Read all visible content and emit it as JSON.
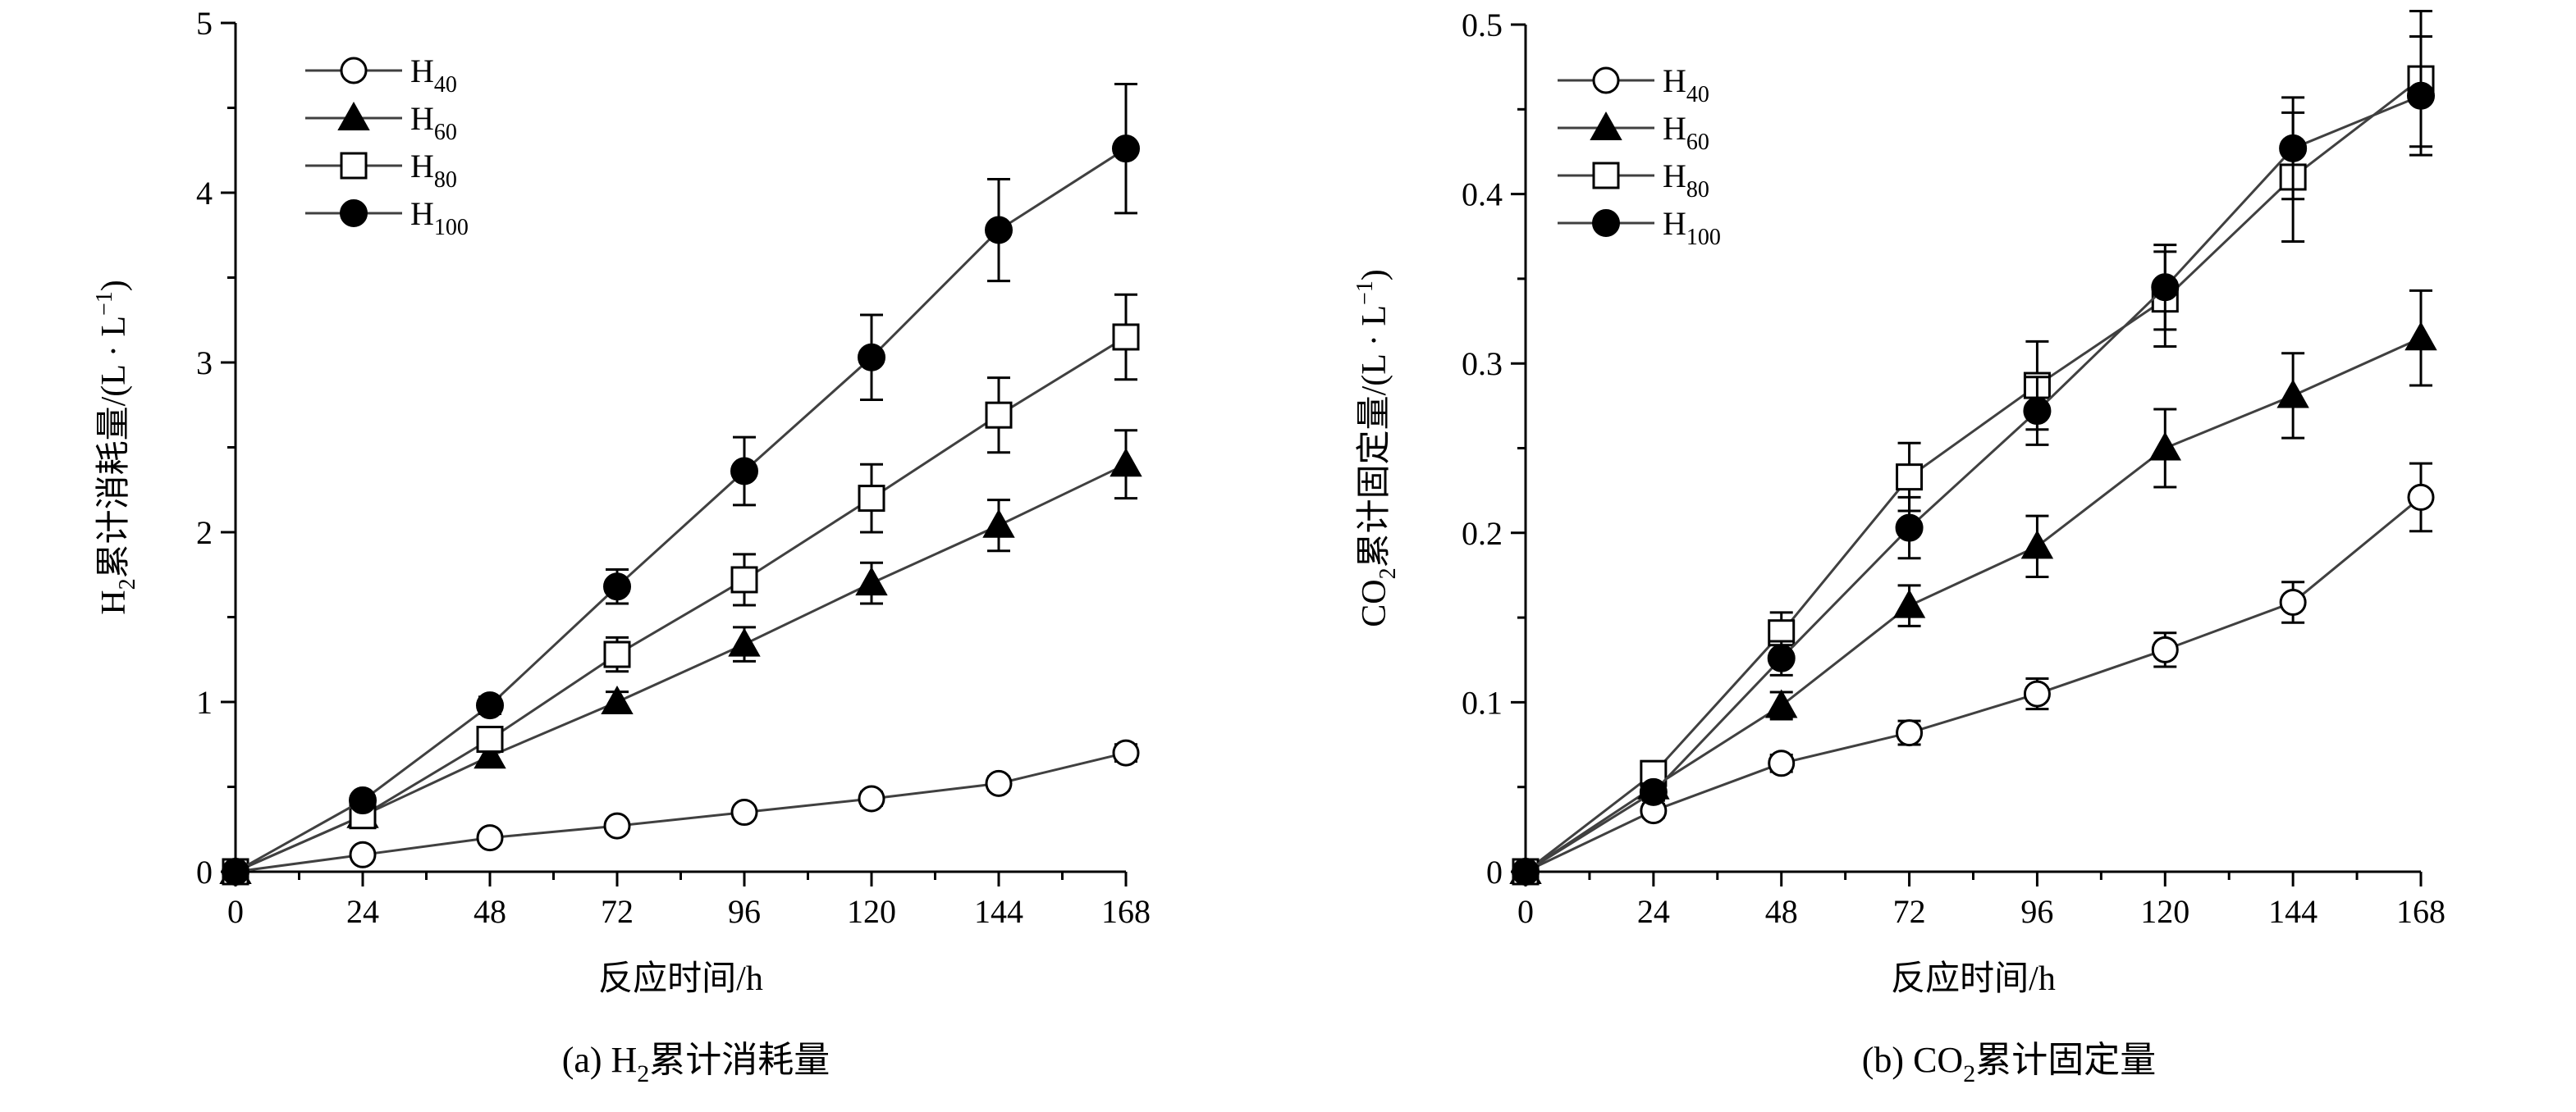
{
  "chart_data": [
    {
      "type": "line",
      "title": "",
      "caption_prefix": "(a) H",
      "caption_sub": "2",
      "caption_suffix": "累计消耗量",
      "xlabel": "反应时间/h",
      "ylabel_prefix": "H",
      "ylabel_sub": "2",
      "ylabel_main": "累计消耗量/(L · L",
      "ylabel_sup": "−1",
      "ylabel_close": ")",
      "xlim": [
        0,
        168
      ],
      "ylim": [
        0,
        5
      ],
      "x_ticks": [
        0,
        24,
        48,
        72,
        96,
        120,
        144,
        168
      ],
      "y_ticks": [
        0,
        1,
        2,
        3,
        4,
        5
      ],
      "y_tick_labels": [
        "0",
        "1",
        "2",
        "3",
        "4",
        "5"
      ],
      "grid": false,
      "legend_position": "top-left",
      "x": [
        0,
        24,
        48,
        72,
        96,
        120,
        144,
        168
      ],
      "series": [
        {
          "name": "H",
          "name_sub": "40",
          "marker": "open-circle",
          "values": [
            0,
            0.1,
            0.2,
            0.27,
            0.35,
            0.43,
            0.52,
            0.7
          ],
          "errors": [
            0,
            0.02,
            0.02,
            0.03,
            0.03,
            0.04,
            0.04,
            0.05
          ]
        },
        {
          "name": "H",
          "name_sub": "60",
          "marker": "filled-triangle",
          "values": [
            0,
            0.33,
            0.68,
            1.0,
            1.34,
            1.7,
            2.04,
            2.4
          ],
          "errors": [
            0,
            0.02,
            0.05,
            0.06,
            0.1,
            0.12,
            0.15,
            0.2
          ]
        },
        {
          "name": "H",
          "name_sub": "80",
          "marker": "open-square",
          "values": [
            0,
            0.33,
            0.78,
            1.28,
            1.72,
            2.2,
            2.69,
            3.15
          ],
          "errors": [
            0,
            0.03,
            0.06,
            0.1,
            0.15,
            0.2,
            0.22,
            0.25
          ]
        },
        {
          "name": "H",
          "name_sub": "100",
          "marker": "filled-circle",
          "values": [
            0,
            0.42,
            0.98,
            1.68,
            2.36,
            3.03,
            3.78,
            4.26
          ],
          "errors": [
            0,
            0.03,
            0.05,
            0.1,
            0.2,
            0.25,
            0.3,
            0.38
          ]
        }
      ]
    },
    {
      "type": "line",
      "title": "",
      "caption_prefix": "(b) CO",
      "caption_sub": "2",
      "caption_suffix": "累计固定量",
      "xlabel": "反应时间/h",
      "ylabel_prefix": "CO",
      "ylabel_sub": "2",
      "ylabel_main": "累计固定量/(L · L",
      "ylabel_sup": "−1",
      "ylabel_close": ")",
      "xlim": [
        0,
        168
      ],
      "ylim": [
        0,
        0.5
      ],
      "x_ticks": [
        0,
        24,
        48,
        72,
        96,
        120,
        144,
        168
      ],
      "y_ticks": [
        0,
        0.1,
        0.2,
        0.3,
        0.4,
        0.5
      ],
      "y_tick_labels": [
        "0",
        "0.1",
        "0.2",
        "0.3",
        "0.4",
        "0.5"
      ],
      "grid": false,
      "legend_position": "top-left",
      "x": [
        0,
        24,
        48,
        72,
        96,
        120,
        144,
        168
      ],
      "series": [
        {
          "name": "H",
          "name_sub": "40",
          "marker": "open-circle",
          "values": [
            0,
            0.036,
            0.064,
            0.082,
            0.105,
            0.131,
            0.159,
            0.221
          ],
          "errors": [
            0,
            0.004,
            0.005,
            0.007,
            0.009,
            0.01,
            0.012,
            0.02
          ]
        },
        {
          "name": "H",
          "name_sub": "60",
          "marker": "filled-triangle",
          "values": [
            0,
            0.05,
            0.098,
            0.157,
            0.192,
            0.25,
            0.281,
            0.315
          ],
          "errors": [
            0,
            0.005,
            0.008,
            0.012,
            0.018,
            0.023,
            0.025,
            0.028
          ]
        },
        {
          "name": "H",
          "name_sub": "80",
          "marker": "open-square",
          "values": [
            0,
            0.058,
            0.141,
            0.233,
            0.287,
            0.338,
            0.41,
            0.468
          ],
          "errors": [
            0,
            0.006,
            0.012,
            0.02,
            0.026,
            0.028,
            0.038,
            0.04
          ]
        },
        {
          "name": "H",
          "name_sub": "100",
          "marker": "filled-circle",
          "values": [
            0,
            0.047,
            0.126,
            0.203,
            0.272,
            0.345,
            0.427,
            0.458
          ],
          "errors": [
            0,
            0.005,
            0.01,
            0.018,
            0.02,
            0.025,
            0.03,
            0.035
          ]
        }
      ]
    }
  ]
}
